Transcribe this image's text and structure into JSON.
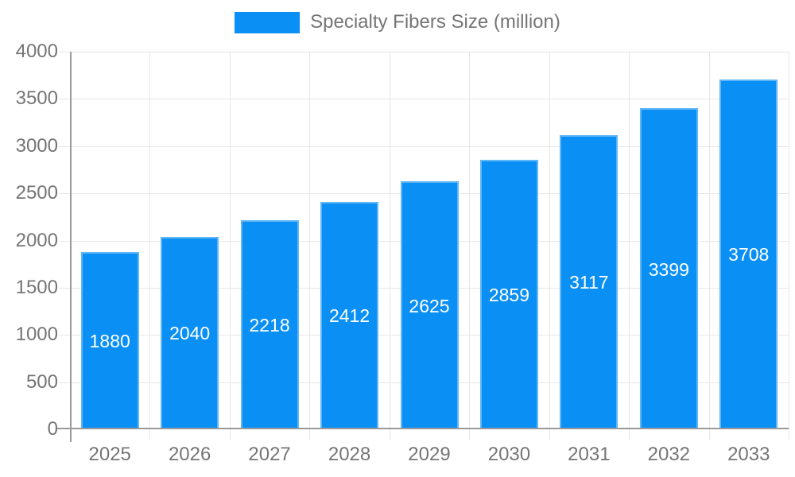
{
  "legend": {
    "label": "Specialty Fibers Size (million)"
  },
  "chart_data": {
    "type": "bar",
    "title": "Specialty Fibers Size (million)",
    "categories": [
      "2025",
      "2026",
      "2027",
      "2028",
      "2029",
      "2030",
      "2031",
      "2032",
      "2033"
    ],
    "values": [
      1880,
      2040,
      2218,
      2412,
      2625,
      2859,
      3117,
      3399,
      3708
    ],
    "series_name": "Specialty Fibers Size (million)",
    "xlabel": "",
    "ylabel": "",
    "ylim": [
      0,
      4000
    ],
    "yticks": [
      0,
      500,
      1000,
      1500,
      2000,
      2500,
      3000,
      3500,
      4000
    ],
    "grid": true,
    "legend_position": "top",
    "value_labels": "centered-inside-bars",
    "colors": {
      "bar": "#0a90f5",
      "value_label": "#ffffff",
      "axis_line": "#9a9a9a",
      "grid_line": "#e6e6e6",
      "tick_text": "#757575",
      "legend_text": "#757575",
      "background": "#ffffff"
    }
  }
}
